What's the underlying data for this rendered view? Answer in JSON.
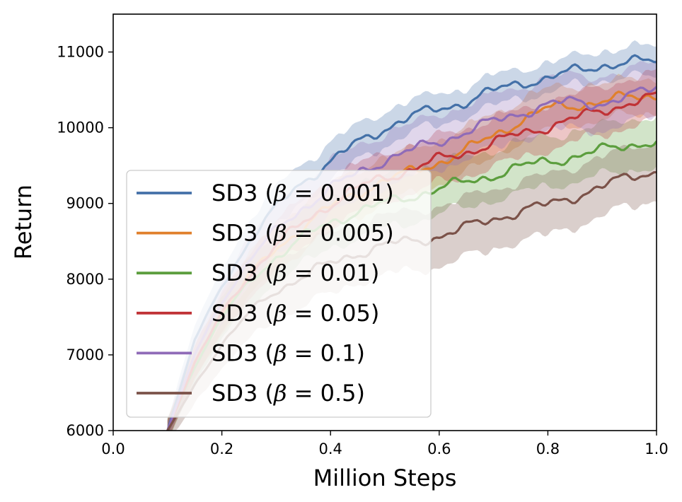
{
  "chart_data": {
    "type": "line",
    "title": "",
    "xlabel": "Million Steps",
    "ylabel": "Return",
    "xlim": [
      0.0,
      1.0
    ],
    "ylim": [
      6000,
      11500
    ],
    "xticks": [
      0.0,
      0.2,
      0.4,
      0.6,
      0.8,
      1.0
    ],
    "xtick_labels": [
      "0.0",
      "0.2",
      "0.4",
      "0.6",
      "0.8",
      "1.0"
    ],
    "yticks": [
      6000,
      7000,
      8000,
      9000,
      10000,
      11000
    ],
    "ytick_labels": [
      "6000",
      "7000",
      "8000",
      "9000",
      "10000",
      "11000"
    ],
    "grid": false,
    "legend_position": "center-left",
    "x": [
      0.1,
      0.15,
      0.2,
      0.25,
      0.3,
      0.35,
      0.4,
      0.45,
      0.5,
      0.55,
      0.6,
      0.65,
      0.7,
      0.75,
      0.8,
      0.85,
      0.9,
      0.95,
      1.0
    ],
    "series": [
      {
        "name": "SD3 (β = 0.001)",
        "prefix": "SD3 (",
        "symbol": "β",
        "suffix": " = 0.001)",
        "color": "#4471a8",
        "values": [
          6000,
          7200,
          7900,
          8500,
          8950,
          9300,
          9550,
          9800,
          10000,
          10150,
          10250,
          10350,
          10480,
          10600,
          10650,
          10750,
          10830,
          10860,
          10880
        ],
        "spread": [
          120,
          180,
          220,
          250,
          250,
          240,
          230,
          220,
          210,
          200,
          190,
          180,
          180,
          180,
          180,
          180,
          180,
          180,
          180
        ]
      },
      {
        "name": "SD3 (β = 0.005)",
        "prefix": "SD3 (",
        "symbol": "β",
        "suffix": " = 0.005)",
        "color": "#e0802c",
        "values": [
          6000,
          6900,
          7550,
          8050,
          8400,
          8700,
          8950,
          9150,
          9300,
          9420,
          9550,
          9700,
          9900,
          10100,
          10250,
          10300,
          10350,
          10400,
          10430
        ],
        "spread": [
          130,
          200,
          250,
          280,
          290,
          290,
          290,
          290,
          290,
          290,
          280,
          280,
          270,
          260,
          250,
          240,
          230,
          220,
          210
        ]
      },
      {
        "name": "SD3 (β = 0.01)",
        "prefix": "SD3 (",
        "symbol": "β",
        "suffix": " = 0.01)",
        "color": "#5c9e3e",
        "values": [
          6000,
          6850,
          7500,
          7950,
          8300,
          8550,
          8750,
          8900,
          9000,
          9100,
          9200,
          9280,
          9380,
          9480,
          9560,
          9620,
          9700,
          9780,
          9820
        ],
        "spread": [
          130,
          200,
          260,
          300,
          320,
          330,
          330,
          330,
          330,
          330,
          320,
          320,
          320,
          320,
          320,
          320,
          320,
          320,
          320
        ]
      },
      {
        "name": "SD3 (β = 0.05)",
        "prefix": "SD3 (",
        "symbol": "β",
        "suffix": " = 0.05)",
        "color": "#c03236",
        "values": [
          6000,
          6900,
          7550,
          8050,
          8450,
          8750,
          9000,
          9200,
          9350,
          9450,
          9580,
          9680,
          9800,
          9920,
          10020,
          10120,
          10230,
          10330,
          10400
        ],
        "spread": [
          130,
          200,
          260,
          290,
          300,
          300,
          300,
          300,
          300,
          300,
          300,
          300,
          300,
          300,
          300,
          300,
          300,
          300,
          300
        ]
      },
      {
        "name": "SD3 (β = 0.1)",
        "prefix": "SD3 (",
        "symbol": "β",
        "suffix": " = 0.1)",
        "color": "#8f6bb8",
        "values": [
          6000,
          7000,
          7700,
          8250,
          8650,
          8950,
          9200,
          9400,
          9580,
          9700,
          9820,
          9950,
          10080,
          10200,
          10300,
          10350,
          10320,
          10400,
          10550
        ],
        "spread": [
          130,
          200,
          260,
          300,
          330,
          340,
          340,
          340,
          340,
          340,
          340,
          340,
          340,
          340,
          340,
          340,
          340,
          340,
          340
        ]
      },
      {
        "name": "SD3 (β = 0.5)",
        "prefix": "SD3 (",
        "symbol": "β",
        "suffix": " = 0.5)",
        "color": "#7b5249",
        "values": [
          6000,
          6600,
          7150,
          7550,
          7850,
          8050,
          8200,
          8350,
          8450,
          8500,
          8570,
          8680,
          8800,
          8900,
          8980,
          9100,
          9220,
          9350,
          9430
        ],
        "spread": [
          150,
          230,
          300,
          340,
          370,
          380,
          380,
          380,
          380,
          380,
          380,
          380,
          380,
          380,
          380,
          380,
          380,
          370,
          360
        ]
      }
    ]
  }
}
